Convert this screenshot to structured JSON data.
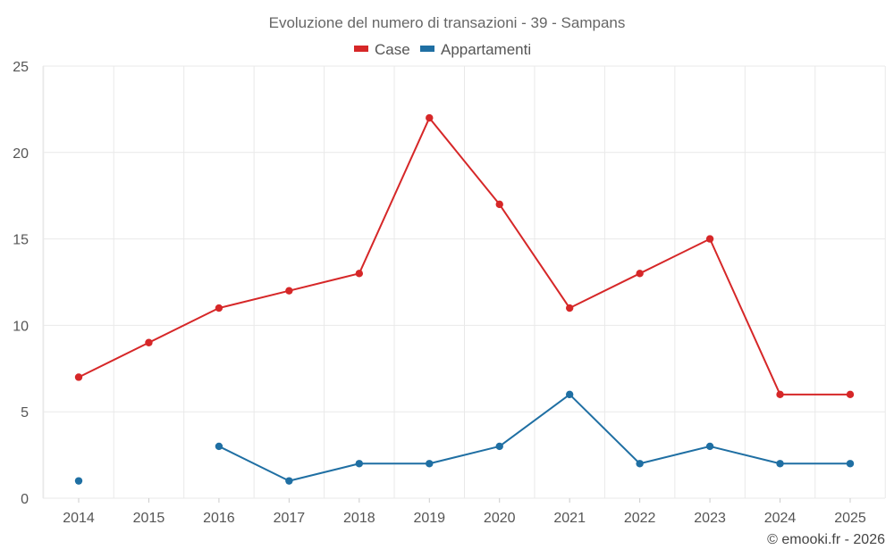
{
  "chart_data": {
    "type": "line",
    "title": "Evoluzione del numero di transazioni - 39 - Sampans",
    "categories": [
      "2014",
      "2015",
      "2016",
      "2017",
      "2018",
      "2019",
      "2020",
      "2021",
      "2022",
      "2023",
      "2024",
      "2025"
    ],
    "series": [
      {
        "name": "Case",
        "color": "#d62728",
        "values": [
          7,
          9,
          11,
          12,
          13,
          22,
          17,
          11,
          13,
          15,
          6,
          6
        ]
      },
      {
        "name": "Appartamenti",
        "color": "#1f6fa3",
        "values": [
          1,
          null,
          3,
          1,
          2,
          2,
          3,
          6,
          2,
          3,
          2,
          2
        ]
      }
    ],
    "ylim": [
      0,
      25
    ],
    "yticks": [
      0,
      5,
      10,
      15,
      20,
      25
    ],
    "xlabel": "",
    "ylabel": "",
    "grid": true,
    "legend_position": "top-center"
  },
  "credit": "© emooki.fr - 2026"
}
